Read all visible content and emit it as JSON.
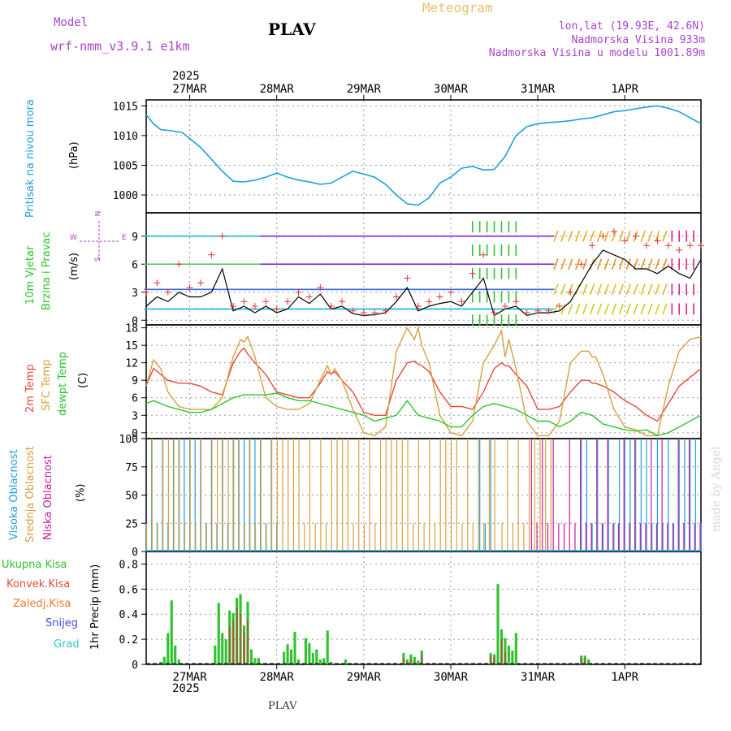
{
  "header": {
    "model_label": "Model",
    "model_name": "wrf-nmm_v3.9.1 e1km",
    "station": "PLAV",
    "title": "Meteogram",
    "lonlat": "lon,lat (19.93E, 42.6N)",
    "elevation": "Nadmorska Visina 933m",
    "model_elevation": "Nadmorska Visina u modelu 1001.89m",
    "footer_station": "PLAV",
    "made_by": "made by Angel"
  },
  "colors": {
    "pressure": "#1e9fe0",
    "temp2m": "#e84a3a",
    "sfc": "#d8a040",
    "dewpt": "#2ec42e",
    "high_cloud": "#1e9fe0",
    "mid_cloud": "#d8a040",
    "low_cloud": "#cc1aa0",
    "total_rain": "#2ec42e",
    "conv_rain": "#e84a3a",
    "frz_rain": "#f07a30",
    "snow": "#4a4ae0",
    "hail": "#30c8c8",
    "wind_line": "#000000",
    "gust": "#e83030",
    "compass": "#aa44cc"
  },
  "x_axis": {
    "year": "2025",
    "dates": [
      "27MAR",
      "28MAR",
      "29MAR",
      "30MAR",
      "31MAR",
      "1APR"
    ]
  },
  "panels": {
    "pressure": {
      "label": "Pritisak na nivou mora",
      "unit": "(hPa)",
      "ticks": [
        "1000",
        "1005",
        "1010",
        "1015"
      ]
    },
    "wind": {
      "label1": "10m Vjetar",
      "label2": "Brzina i Pravac",
      "unit": "(m/s)",
      "ticks": [
        "0",
        "3",
        "6",
        "9"
      ],
      "compass_n": "N",
      "compass_s": "S",
      "compass_e": "E",
      "compass_w": "W"
    },
    "temp": {
      "label1": "2m Temp",
      "label2": "SFC Temp",
      "label3": "dewpt Temp",
      "unit": "(C)",
      "ticks": [
        "0",
        "3",
        "6",
        "9",
        "12",
        "15",
        "18"
      ]
    },
    "cloud": {
      "label1": "Visoka Oblacnost",
      "label2": "Srednja Oblacnost",
      "label3": "Niska Oblacnost",
      "unit": "(%)",
      "ticks": [
        "0",
        "25",
        "50",
        "75",
        "100"
      ]
    },
    "precip": {
      "unit": "1hr Precip (mm)",
      "ticks": [
        "0",
        "0.2",
        "0.4",
        "0.6",
        "0.8"
      ],
      "legend": [
        "Ukupna Kisa",
        "Konvek.Kisa",
        "Zaledj.Kisa",
        "Snijeg",
        "Grad"
      ]
    }
  },
  "chart_data": [
    {
      "type": "line",
      "panel": "pressure",
      "x_unit": "hours after 27MAR 00:00",
      "ylim": [
        997,
        1016
      ],
      "series": [
        {
          "x": [
            -12,
            -10,
            -8,
            -5,
            -2,
            0,
            3,
            6,
            9,
            12,
            15,
            18,
            21,
            24,
            27,
            30,
            33,
            36,
            39,
            42,
            45,
            48,
            51,
            54,
            57,
            60,
            63,
            66,
            69,
            72,
            75,
            78,
            81,
            84,
            87,
            90,
            93,
            96,
            99,
            102,
            105,
            108,
            111,
            114,
            117,
            120,
            123,
            126,
            129,
            132,
            135,
            138,
            141
          ],
          "y": [
            1013.5,
            1012,
            1011,
            1010.8,
            1010.5,
            1009.5,
            1008,
            1006,
            1004,
            1002.3,
            1002.2,
            1002.5,
            1003,
            1003.7,
            1003,
            1002.5,
            1002.2,
            1001.8,
            1002,
            1003,
            1004,
            1003.5,
            1003,
            1001.8,
            1000,
            998.5,
            998.3,
            999.5,
            1002,
            1003,
            1004.5,
            1004.8,
            1004.2,
            1004.3,
            1006.5,
            1010,
            1011.5,
            1012,
            1012.2,
            1012.3,
            1012.5,
            1012.8,
            1013,
            1013.5,
            1014,
            1014.2,
            1014.5,
            1014.8,
            1015,
            1014.6,
            1014,
            1013,
            1012
          ]
        }
      ]
    },
    {
      "type": "line",
      "panel": "wind",
      "x_unit": "hours after 27MAR 00:00",
      "ylim": [
        -0.5,
        11.5
      ],
      "series": [
        {
          "x": [
            -12,
            -9,
            -6,
            -3,
            0,
            3,
            6,
            9,
            12,
            15,
            18,
            21,
            24,
            27,
            30,
            33,
            36,
            39,
            42,
            45,
            48,
            51,
            54,
            57,
            60,
            63,
            66,
            69,
            72,
            75,
            78,
            81,
            84,
            87,
            90,
            93,
            96,
            99,
            102,
            105,
            108,
            111,
            114,
            117,
            120,
            123,
            126,
            129,
            132,
            135,
            138,
            141
          ],
          "y": [
            1.5,
            2.5,
            2,
            3,
            2.5,
            2.5,
            3,
            5.5,
            1,
            1.5,
            0.8,
            1.5,
            0.8,
            1.2,
            2.5,
            1.8,
            2.8,
            1.2,
            1.5,
            0.7,
            0.5,
            0.6,
            0.8,
            2,
            3.5,
            1,
            1.5,
            1.8,
            2,
            1.5,
            3,
            4.5,
            0.5,
            1.2,
            1.5,
            0.5,
            0.8,
            0.8,
            1,
            2,
            4,
            6,
            7.5,
            7,
            6.5,
            5.5,
            5.5,
            5,
            5.8,
            5,
            4.5,
            6.5
          ]
        }
      ],
      "gusts": {
        "x": [
          -12,
          -9,
          -6,
          -3,
          0,
          3,
          6,
          9,
          12,
          15,
          18,
          21,
          24,
          27,
          30,
          33,
          36,
          39,
          42,
          45,
          48,
          51,
          54,
          57,
          60,
          63,
          66,
          69,
          72,
          75,
          78,
          81,
          84,
          87,
          90,
          93,
          96,
          99,
          102,
          105,
          108,
          111,
          114,
          117,
          120,
          123,
          126,
          129,
          132,
          135,
          138,
          141
        ],
        "y": [
          3,
          4,
          3,
          6,
          3.5,
          4,
          7,
          9,
          1.5,
          2,
          1.5,
          2,
          1.2,
          2,
          3,
          2.5,
          3.5,
          1.5,
          2,
          1,
          0.8,
          0.8,
          1,
          2.5,
          4.5,
          1.5,
          2,
          2.5,
          3,
          2,
          5,
          7,
          0.8,
          1.5,
          2,
          0.8,
          1,
          1,
          1.5,
          3,
          6,
          8,
          9,
          9.5,
          8.5,
          9,
          8,
          8.5,
          8,
          7.5,
          8,
          8
        ]
      }
    },
    {
      "type": "line",
      "panel": "temp",
      "x_unit": "hours after 27MAR 00:00",
      "ylim": [
        -1,
        18.5
      ],
      "series": [
        {
          "name": "2m Temp",
          "x": [
            -12,
            -10,
            -8,
            -6,
            -3,
            0,
            3,
            6,
            9,
            12,
            14,
            15,
            16,
            18,
            21,
            24,
            27,
            30,
            33,
            36,
            38,
            39,
            40,
            42,
            45,
            48,
            51,
            54,
            57,
            60,
            62,
            63,
            64,
            66,
            69,
            72,
            75,
            78,
            81,
            84,
            86,
            87,
            88,
            90,
            93,
            96,
            99,
            102,
            105,
            108,
            110,
            111,
            112,
            114,
            117,
            120,
            123,
            126,
            129,
            132,
            135,
            138,
            141
          ],
          "y": [
            8,
            11,
            10,
            9,
            8.5,
            8.5,
            8,
            7,
            6.5,
            12,
            14,
            14.5,
            13.5,
            12,
            10,
            7,
            6.5,
            6,
            6,
            8.5,
            10.5,
            10,
            10.5,
            9,
            7,
            3.5,
            3,
            3,
            9,
            12,
            12.3,
            11.8,
            11.5,
            10.5,
            7,
            4.5,
            4.5,
            4,
            7,
            11,
            12,
            11.5,
            11.5,
            10,
            8,
            4,
            4,
            4.5,
            7,
            9,
            9,
            8.5,
            8.5,
            8,
            7,
            5.5,
            4.5,
            3,
            2,
            5,
            8,
            9.5,
            11
          ]
        },
        {
          "name": "SFC Temp",
          "x": [
            -12,
            -10,
            -8,
            -6,
            -3,
            0,
            3,
            6,
            9,
            12,
            14,
            15,
            16,
            18,
            21,
            24,
            27,
            30,
            33,
            36,
            38,
            39,
            40,
            42,
            45,
            48,
            51,
            54,
            57,
            60,
            62,
            63,
            64,
            66,
            69,
            72,
            75,
            78,
            81,
            84,
            86,
            87,
            88,
            90,
            93,
            96,
            99,
            102,
            105,
            108,
            110,
            111,
            112,
            114,
            117,
            120,
            123,
            126,
            129,
            132,
            135,
            138,
            141
          ],
          "y": [
            8,
            12.5,
            11,
            7,
            4.5,
            4,
            4,
            4,
            6,
            13,
            16,
            15.5,
            16.5,
            13,
            6,
            4.5,
            4,
            4,
            5,
            9,
            11.5,
            10,
            11,
            9,
            4,
            0,
            -0.5,
            1,
            14,
            18,
            16,
            18,
            15,
            12,
            3,
            0,
            -0.5,
            2,
            12,
            15,
            17.5,
            13,
            16,
            11,
            2,
            -0.5,
            -0.5,
            2,
            12,
            14,
            14,
            13,
            13,
            10,
            4,
            1,
            0.5,
            -0.5,
            -0.5,
            8,
            14,
            16,
            16.5
          ]
        },
        {
          "name": "dewpt Temp",
          "x": [
            -12,
            -10,
            -8,
            -6,
            -3,
            0,
            3,
            6,
            9,
            12,
            15,
            18,
            21,
            24,
            27,
            30,
            33,
            36,
            39,
            42,
            45,
            48,
            51,
            54,
            57,
            60,
            63,
            66,
            69,
            72,
            75,
            78,
            81,
            84,
            87,
            90,
            93,
            96,
            99,
            102,
            105,
            108,
            111,
            114,
            117,
            120,
            123,
            126,
            129,
            132,
            135,
            138,
            141
          ],
          "y": [
            5,
            5.5,
            5,
            4.5,
            4,
            3.5,
            3.5,
            4,
            5,
            6,
            6.5,
            6.5,
            6.5,
            6.8,
            6,
            5.5,
            5.5,
            5,
            4.5,
            4,
            3.5,
            3,
            2,
            2.5,
            3,
            5.5,
            3,
            2.5,
            2,
            1,
            1,
            3,
            4.5,
            5,
            4.5,
            4,
            3,
            2,
            2,
            1,
            2,
            3.5,
            3,
            1.5,
            1,
            0.5,
            0.3,
            0.5,
            -0.5,
            0,
            1,
            2,
            3
          ]
        }
      ]
    },
    {
      "type": "bar",
      "panel": "cloud",
      "ylim": [
        0,
        100
      ],
      "series": [
        {
          "name": "Visoka Oblacnost",
          "segments": [
            [
              -12,
              24
            ],
            [
              80,
              84
            ],
            [
              108,
              141
            ]
          ],
          "level": 100
        },
        {
          "name": "Srednja Oblacnost",
          "segments": [
            [
              -12,
              84
            ],
            [
              86,
              100
            ]
          ],
          "level": 100
        },
        {
          "name": "Niska Oblacnost",
          "segments": [
            [
              94,
              141
            ]
          ],
          "level": 40
        }
      ]
    },
    {
      "type": "bar",
      "panel": "precip",
      "x_unit": "hours after 27MAR 00:00",
      "ylim": [
        0,
        0.9
      ],
      "series": [
        {
          "name": "Ukupna Kisa",
          "x": [
            -8,
            -7,
            -6,
            -5,
            -4,
            -3,
            7,
            8,
            9,
            10,
            11,
            12,
            13,
            14,
            15,
            16,
            17,
            18,
            19,
            26,
            27,
            28,
            29,
            30,
            32,
            33,
            34,
            35,
            36,
            37,
            38,
            39,
            43,
            59,
            60,
            61,
            62,
            63,
            64,
            83,
            84,
            85,
            86,
            87,
            88,
            89,
            90,
            108,
            109,
            110
          ],
          "y": [
            0.02,
            0.06,
            0.25,
            0.51,
            0.15,
            0.04,
            0.15,
            0.49,
            0.25,
            0.2,
            0.43,
            0.41,
            0.53,
            0.56,
            0.31,
            0.5,
            0.12,
            0.05,
            0.05,
            0.1,
            0.16,
            0.12,
            0.26,
            0.04,
            0.21,
            0.17,
            0.09,
            0.12,
            0.04,
            0.05,
            0.27,
            0.02,
            0.04,
            0.09,
            0.04,
            0.08,
            0.06,
            0.03,
            0.11,
            0.09,
            0.08,
            0.64,
            0.28,
            0.21,
            0.15,
            0.11,
            0.25,
            0.07,
            0.07,
            0.04
          ]
        },
        {
          "name": "Konvek.Kisa",
          "x": [
            11,
            12,
            13,
            14,
            15,
            16,
            59,
            61,
            64,
            83,
            84,
            86,
            87,
            108,
            109
          ],
          "y": [
            0.3,
            0.35,
            0.45,
            0.4,
            0.25,
            0.35,
            0.05,
            0.05,
            0.08,
            0.07,
            0.06,
            0.2,
            0.1,
            0.05,
            0.05
          ]
        }
      ]
    }
  ]
}
